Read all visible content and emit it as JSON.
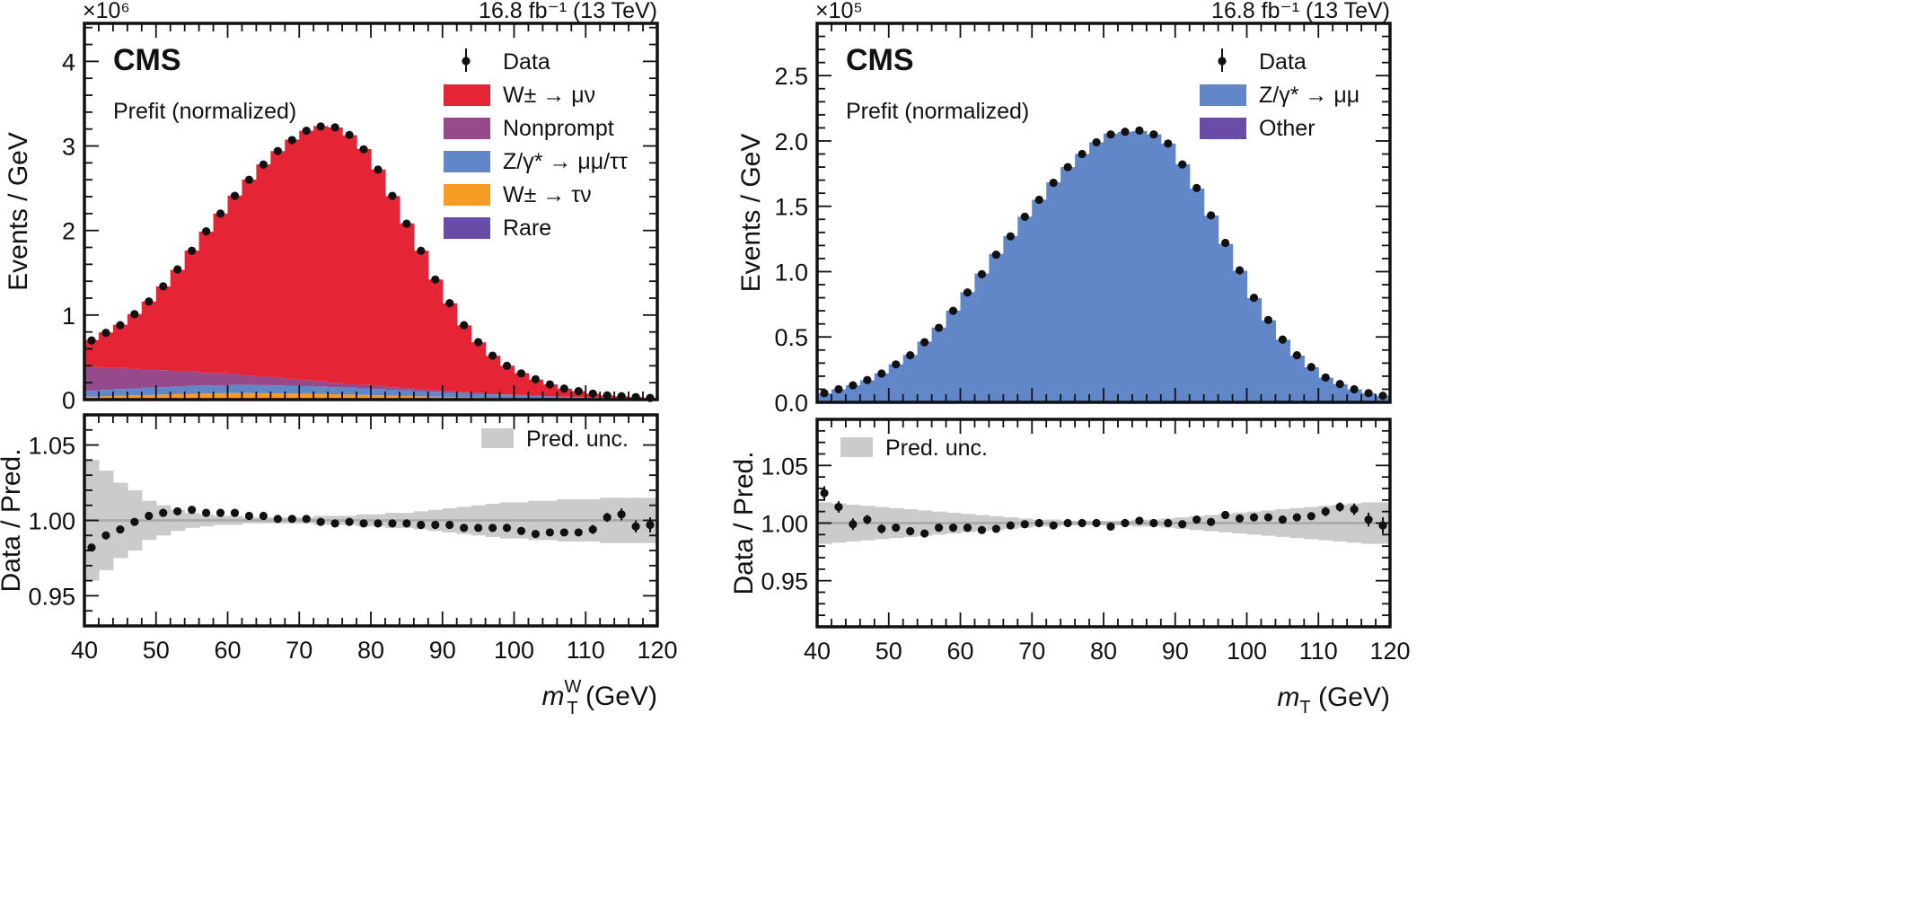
{
  "chart_data": [
    {
      "type": "bar",
      "subtype": "stacked-histogram-with-ratio",
      "experiment_label": "CMS",
      "annotation": "Prefit (normalized)",
      "lumi_label": "16.8 fb⁻¹ (13 TeV)",
      "ylabel": "Events / GeV",
      "y_multiplier": "×10⁶",
      "ratio_ylabel": "Data / Pred.",
      "xlabel": "m",
      "xlabel_sub": "T",
      "xlabel_sup": "W",
      "xlabel_unit": " (GeV)",
      "xlim": [
        40,
        120
      ],
      "ylim": [
        0,
        4.45
      ],
      "ratio_ylim": [
        0.93,
        1.07
      ],
      "x_ticks": [
        "40",
        "50",
        "60",
        "70",
        "80",
        "90",
        "100",
        "110",
        "120"
      ],
      "y_ticks": [
        "0",
        "1",
        "2",
        "3",
        "4"
      ],
      "ratio_y_ticks": [
        "0.95",
        "1.00",
        "1.05"
      ],
      "bin_edges_start": 40,
      "bin_width": 2,
      "legend": {
        "data": "Data",
        "unc": "Pred. unc."
      },
      "series": [
        {
          "name": "Rare",
          "color": "#6a4ca6",
          "values": [
            0.005,
            0.005,
            0.005,
            0.005,
            0.005,
            0.005,
            0.005,
            0.005,
            0.005,
            0.005,
            0.005,
            0.005,
            0.005,
            0.005,
            0.005,
            0.005,
            0.005,
            0.005,
            0.005,
            0.005,
            0.005,
            0.005,
            0.005,
            0.005,
            0.005,
            0.005,
            0.005,
            0.005,
            0.005,
            0.005,
            0.005,
            0.005,
            0.004,
            0.004,
            0.004,
            0.003,
            0.003,
            0.003,
            0.002,
            0.002
          ]
        },
        {
          "name": "W± → τν",
          "color": "#f59c22",
          "values": [
            0.03,
            0.035,
            0.04,
            0.045,
            0.05,
            0.055,
            0.06,
            0.065,
            0.068,
            0.07,
            0.072,
            0.072,
            0.071,
            0.07,
            0.068,
            0.065,
            0.062,
            0.058,
            0.054,
            0.05,
            0.046,
            0.042,
            0.038,
            0.034,
            0.03,
            0.026,
            0.022,
            0.018,
            0.015,
            0.012,
            0.01,
            0.008,
            0.006,
            0.005,
            0.004,
            0.003,
            0.002,
            0.002,
            0.001,
            0.001
          ]
        },
        {
          "name": "Z/γ* → μμ/ττ",
          "color": "#6187c8",
          "values": [
            0.07,
            0.075,
            0.08,
            0.082,
            0.085,
            0.088,
            0.09,
            0.092,
            0.094,
            0.095,
            0.096,
            0.096,
            0.095,
            0.094,
            0.092,
            0.09,
            0.088,
            0.085,
            0.082,
            0.078,
            0.074,
            0.07,
            0.066,
            0.062,
            0.058,
            0.054,
            0.05,
            0.046,
            0.042,
            0.038,
            0.034,
            0.03,
            0.027,
            0.024,
            0.021,
            0.018,
            0.016,
            0.014,
            0.012,
            0.01
          ]
        },
        {
          "name": "Nonprompt",
          "color": "#964a8b",
          "values": [
            0.28,
            0.26,
            0.25,
            0.23,
            0.21,
            0.2,
            0.18,
            0.17,
            0.15,
            0.14,
            0.13,
            0.11,
            0.1,
            0.09,
            0.08,
            0.07,
            0.06,
            0.05,
            0.045,
            0.04,
            0.035,
            0.03,
            0.025,
            0.02,
            0.017,
            0.014,
            0.011,
            0.009,
            0.007,
            0.006,
            0.005,
            0.004,
            0.003,
            0.003,
            0.002,
            0.002,
            0.001,
            0.001,
            0.001,
            0.001
          ]
        },
        {
          "name": "W± → μν",
          "color": "#e42536",
          "values": [
            0.32,
            0.42,
            0.51,
            0.65,
            0.81,
            0.99,
            1.2,
            1.43,
            1.67,
            1.89,
            2.11,
            2.32,
            2.51,
            2.68,
            2.83,
            2.95,
            3.02,
            3.02,
            2.94,
            2.79,
            2.56,
            2.26,
            1.95,
            1.64,
            1.31,
            1.04,
            0.79,
            0.6,
            0.45,
            0.34,
            0.26,
            0.19,
            0.14,
            0.094,
            0.069,
            0.044,
            0.028,
            0.02,
            0.014,
            0.006
          ]
        }
      ],
      "legend_order": [
        4,
        3,
        2,
        1,
        0
      ],
      "data": [
        0.7,
        0.79,
        0.88,
        1.01,
        1.16,
        1.34,
        1.54,
        1.76,
        1.99,
        2.2,
        2.41,
        2.6,
        2.78,
        2.94,
        3.07,
        3.18,
        3.23,
        3.22,
        3.13,
        2.96,
        2.72,
        2.41,
        2.08,
        1.76,
        1.42,
        1.14,
        0.88,
        0.68,
        0.52,
        0.4,
        0.31,
        0.24,
        0.18,
        0.13,
        0.1,
        0.07,
        0.05,
        0.04,
        0.03,
        0.02
      ],
      "ratio": [
        0.982,
        0.99,
        0.994,
        0.999,
        1.003,
        1.005,
        1.006,
        1.007,
        1.005,
        1.005,
        1.005,
        1.003,
        1.003,
        1.001,
        1.001,
        1.001,
        0.999,
        0.998,
        0.999,
        0.998,
        0.998,
        0.998,
        0.998,
        0.997,
        0.997,
        0.997,
        0.995,
        0.995,
        0.995,
        0.995,
        0.993,
        0.991,
        0.992,
        0.992,
        0.992,
        0.994,
        1.002,
        1.004,
        0.996,
        0.997
      ],
      "ratio_err": [
        0.001,
        0.001,
        0.001,
        0.001,
        0.001,
        0.001,
        0.001,
        0.001,
        0.001,
        0.001,
        0.001,
        0.001,
        0.001,
        0.001,
        0.001,
        0.001,
        0.001,
        0.001,
        0.001,
        0.001,
        0.001,
        0.001,
        0.001,
        0.001,
        0.001,
        0.001,
        0.001,
        0.001,
        0.001,
        0.001,
        0.002,
        0.002,
        0.002,
        0.002,
        0.002,
        0.003,
        0.003,
        0.004,
        0.004,
        0.005
      ],
      "unc_halfwidth": [
        0.04,
        0.033,
        0.025,
        0.02,
        0.013,
        0.01,
        0.007,
        0.005,
        0.004,
        0.003,
        0.003,
        0.002,
        0.002,
        0.002,
        0.002,
        0.002,
        0.003,
        0.003,
        0.003,
        0.004,
        0.004,
        0.005,
        0.005,
        0.006,
        0.007,
        0.008,
        0.009,
        0.01,
        0.011,
        0.012,
        0.012,
        0.013,
        0.013,
        0.014,
        0.014,
        0.014,
        0.015,
        0.015,
        0.015,
        0.015
      ]
    },
    {
      "type": "bar",
      "subtype": "stacked-histogram-with-ratio",
      "experiment_label": "CMS",
      "annotation": "Prefit (normalized)",
      "lumi_label": "16.8 fb⁻¹ (13 TeV)",
      "ylabel": "Events / GeV",
      "y_multiplier": "×10⁵",
      "ratio_ylabel": "Data / Pred.",
      "xlabel": "m",
      "xlabel_sub": "T",
      "xlabel_sup": "",
      "xlabel_unit": " (GeV)",
      "xlim": [
        40,
        120
      ],
      "ylim": [
        0,
        2.9
      ],
      "ratio_ylim": [
        0.91,
        1.09
      ],
      "x_ticks": [
        "40",
        "50",
        "60",
        "70",
        "80",
        "90",
        "100",
        "110",
        "120"
      ],
      "y_ticks": [
        "0.0",
        "0.5",
        "1.0",
        "1.5",
        "2.0",
        "2.5"
      ],
      "ratio_y_ticks": [
        "0.95",
        "1.00",
        "1.05"
      ],
      "bin_edges_start": 40,
      "bin_width": 2,
      "legend": {
        "data": "Data",
        "unc": "Pred. unc."
      },
      "series": [
        {
          "name": "Other",
          "color": "#6a4ca6",
          "values": [
            0.001,
            0.001,
            0.001,
            0.001,
            0.001,
            0.001,
            0.002,
            0.002,
            0.002,
            0.002,
            0.002,
            0.002,
            0.002,
            0.002,
            0.002,
            0.002,
            0.002,
            0.002,
            0.002,
            0.002,
            0.002,
            0.002,
            0.002,
            0.002,
            0.002,
            0.002,
            0.002,
            0.002,
            0.002,
            0.002,
            0.002,
            0.001,
            0.001,
            0.001,
            0.001,
            0.001,
            0.001,
            0.001,
            0.001,
            0.001
          ]
        },
        {
          "name": "Z/γ* → μμ",
          "color": "#6187c8",
          "values": [
            0.067,
            0.098,
            0.129,
            0.168,
            0.22,
            0.29,
            0.36,
            0.462,
            0.57,
            0.7,
            0.841,
            0.984,
            1.134,
            1.27,
            1.419,
            1.548,
            1.681,
            1.798,
            1.898,
            1.988,
            2.054,
            2.068,
            2.074,
            2.048,
            1.978,
            1.82,
            1.633,
            1.427,
            1.21,
            1.005,
            0.795,
            0.626,
            0.478,
            0.357,
            0.267,
            0.187,
            0.137,
            0.098,
            0.069,
            0.049
          ]
        }
      ],
      "legend_order": [
        1,
        0
      ],
      "data": [
        0.07,
        0.1,
        0.13,
        0.17,
        0.22,
        0.29,
        0.36,
        0.46,
        0.57,
        0.7,
        0.84,
        0.98,
        1.13,
        1.27,
        1.42,
        1.55,
        1.68,
        1.8,
        1.9,
        1.99,
        2.05,
        2.07,
        2.08,
        2.05,
        1.98,
        1.82,
        1.64,
        1.43,
        1.22,
        1.01,
        0.8,
        0.63,
        0.48,
        0.36,
        0.27,
        0.19,
        0.14,
        0.1,
        0.07,
        0.05
      ],
      "ratio": [
        1.026,
        1.014,
        0.999,
        1.003,
        0.995,
        0.996,
        0.993,
        0.991,
        0.996,
        0.996,
        0.996,
        0.994,
        0.995,
        0.998,
        0.999,
        1.0,
        0.998,
        1.0,
        1.0,
        1.0,
        0.997,
        1.0,
        1.002,
        1.0,
        1.0,
        0.999,
        1.003,
        1.001,
        1.007,
        1.004,
        1.005,
        1.005,
        1.003,
        1.005,
        1.006,
        1.01,
        1.014,
        1.012,
        1.003,
        0.998
      ],
      "ratio_err": [
        0.006,
        0.005,
        0.005,
        0.004,
        0.004,
        0.003,
        0.003,
        0.002,
        0.002,
        0.002,
        0.002,
        0.002,
        0.001,
        0.001,
        0.001,
        0.001,
        0.001,
        0.001,
        0.001,
        0.001,
        0.001,
        0.001,
        0.001,
        0.001,
        0.001,
        0.001,
        0.001,
        0.001,
        0.001,
        0.002,
        0.002,
        0.002,
        0.002,
        0.003,
        0.003,
        0.004,
        0.004,
        0.005,
        0.006,
        0.007
      ],
      "unc_halfwidth": [
        0.018,
        0.017,
        0.016,
        0.015,
        0.014,
        0.013,
        0.012,
        0.011,
        0.01,
        0.009,
        0.008,
        0.007,
        0.006,
        0.005,
        0.004,
        0.003,
        0.003,
        0.002,
        0.002,
        0.002,
        0.002,
        0.002,
        0.003,
        0.003,
        0.004,
        0.005,
        0.006,
        0.007,
        0.008,
        0.009,
        0.01,
        0.011,
        0.012,
        0.013,
        0.014,
        0.015,
        0.016,
        0.017,
        0.018,
        0.018
      ]
    }
  ]
}
